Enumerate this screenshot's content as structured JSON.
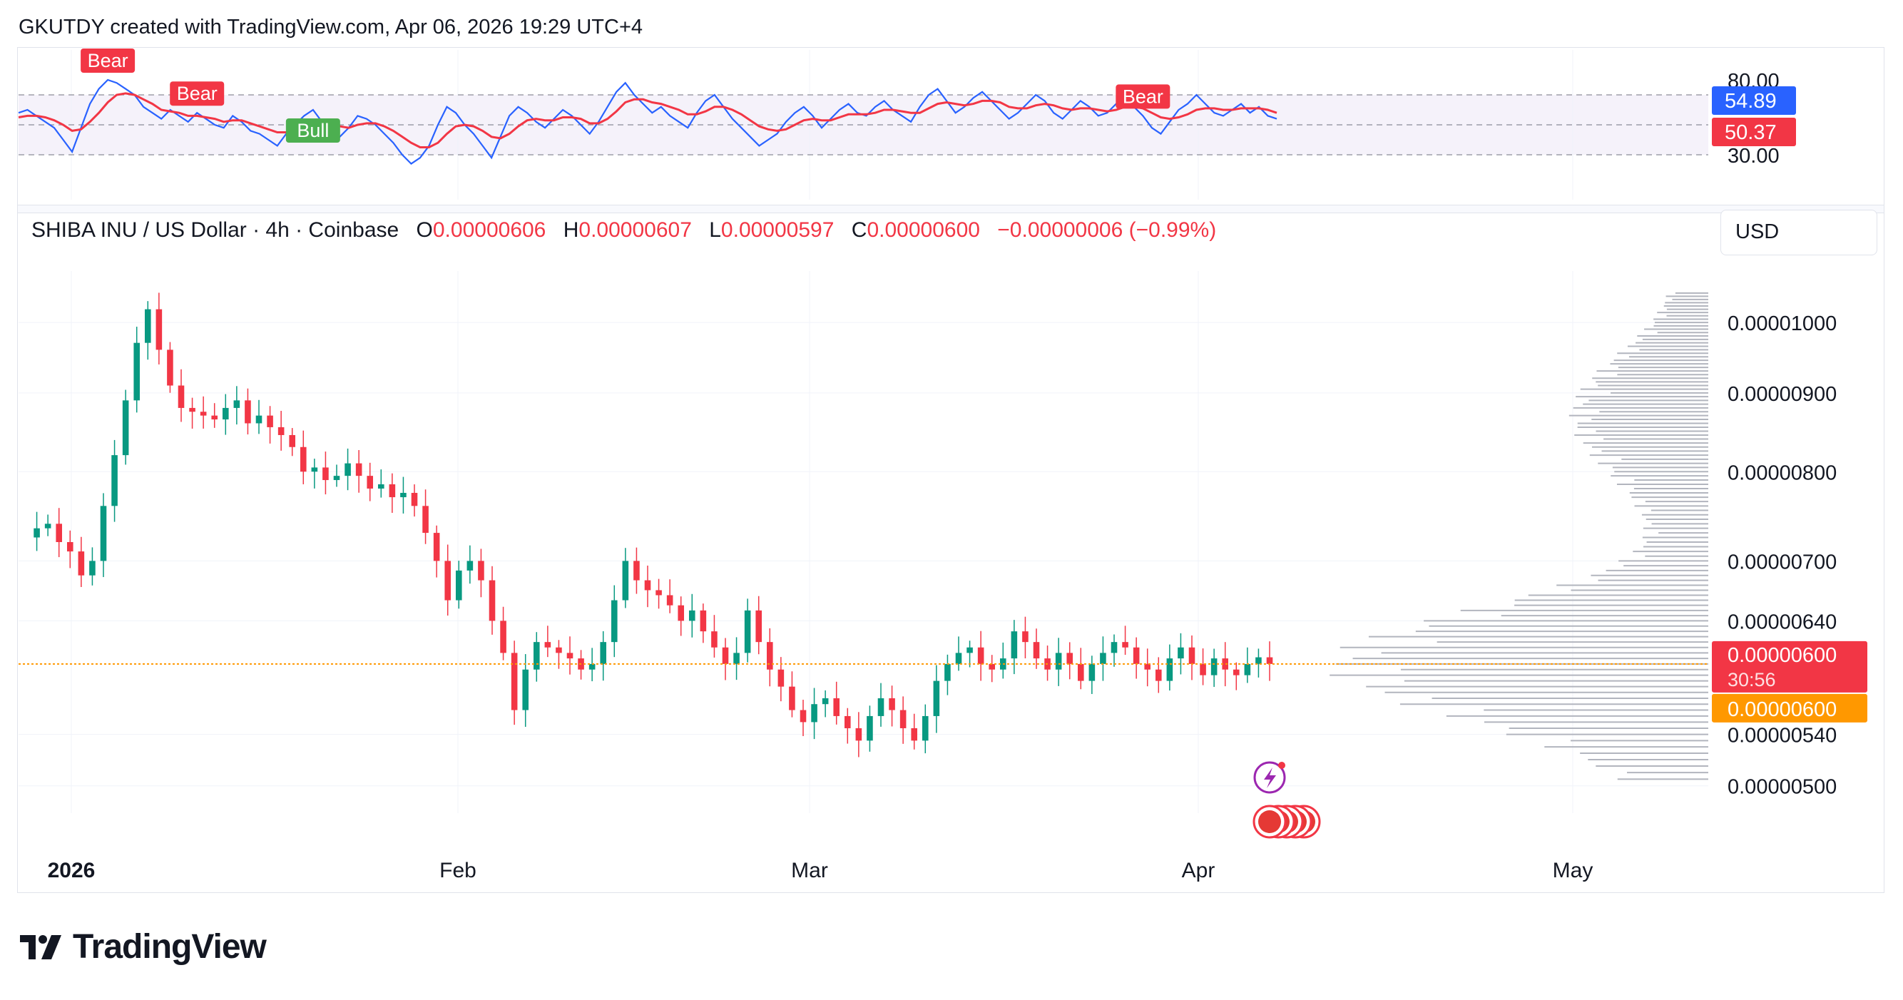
{
  "header": {
    "text": "GKUTDY created with TradingView.com, Apr 06, 2026 19:29 UTC+4"
  },
  "legend": {
    "symbol": "SHIBA INU / US Dollar · 4h · Coinbase",
    "o_label": "O",
    "o_value": "0.00000606",
    "h_label": "H",
    "h_value": "0.00000607",
    "l_label": "L",
    "l_value": "0.00000597",
    "c_label": "C",
    "c_value": "0.00000600",
    "change": "−0.00000006 (−0.99%)"
  },
  "currency": "USD",
  "footer": {
    "brand": "TradingView"
  },
  "colors": {
    "up": "#089981",
    "down": "#f23645",
    "rsi": "#2962ff",
    "rsi_ma": "#f23645",
    "price_line": "#ff9800",
    "volume_profile": "#b2b5be",
    "band": "#7e57c2"
  },
  "chart_data": [
    {
      "type": "line",
      "title": "RSI",
      "y_ticks": [
        "80.00",
        "30.00"
      ],
      "ylim": [
        0,
        100
      ],
      "bands": [
        30,
        70
      ],
      "series": [
        {
          "name": "",
          "current_label": "54.89",
          "values": [
            58,
            60,
            56,
            52,
            48,
            40,
            32,
            48,
            64,
            74,
            80,
            78,
            74,
            70,
            62,
            58,
            54,
            60,
            56,
            52,
            58,
            54,
            50,
            48,
            56,
            52,
            46,
            44,
            40,
            36,
            44,
            50,
            56,
            60,
            52,
            46,
            42,
            48,
            56,
            54,
            50,
            44,
            38,
            30,
            24,
            28,
            36,
            50,
            62,
            58,
            50,
            44,
            36,
            28,
            42,
            56,
            62,
            58,
            52,
            48,
            54,
            60,
            56,
            50,
            44,
            52,
            62,
            72,
            78,
            70,
            64,
            58,
            62,
            56,
            52,
            48,
            58,
            66,
            70,
            62,
            54,
            48,
            42,
            36,
            40,
            44,
            52,
            58,
            62,
            56,
            48,
            54,
            60,
            64,
            58,
            56,
            62,
            66,
            60,
            56,
            52,
            62,
            70,
            74,
            66,
            58,
            62,
            68,
            72,
            66,
            60,
            54,
            58,
            64,
            70,
            66,
            58,
            54,
            60,
            66,
            62,
            56,
            58,
            64,
            70,
            62,
            56,
            48,
            44,
            52,
            60,
            64,
            70,
            64,
            58,
            56,
            60,
            64,
            58,
            62,
            56,
            54
          ]
        },
        {
          "name": "",
          "current_label": "50.37",
          "values": [
            55,
            56,
            56,
            55,
            53,
            50,
            46,
            47,
            52,
            58,
            65,
            70,
            71,
            70,
            67,
            64,
            60,
            59,
            58,
            56,
            56,
            55,
            54,
            52,
            53,
            53,
            51,
            49,
            47,
            45,
            45,
            46,
            49,
            52,
            52,
            51,
            49,
            48,
            50,
            51,
            51,
            49,
            46,
            42,
            38,
            35,
            35,
            38,
            44,
            49,
            50,
            49,
            46,
            42,
            41,
            44,
            49,
            53,
            54,
            53,
            53,
            55,
            55,
            54,
            51,
            51,
            54,
            59,
            65,
            67,
            67,
            65,
            64,
            62,
            60,
            57,
            57,
            59,
            62,
            62,
            60,
            57,
            53,
            49,
            47,
            46,
            47,
            50,
            53,
            54,
            53,
            53,
            55,
            57,
            57,
            57,
            58,
            60,
            60,
            59,
            58,
            58,
            61,
            64,
            65,
            64,
            63,
            64,
            66,
            66,
            65,
            62,
            61,
            61,
            63,
            64,
            63,
            61,
            60,
            61,
            61,
            60,
            59,
            60,
            62,
            62,
            61,
            58,
            55,
            54,
            55,
            57,
            60,
            61,
            61,
            60,
            60,
            61,
            61,
            61,
            60,
            58
          ]
        }
      ],
      "markers": [
        {
          "text": "Bear",
          "color": "#f23645",
          "index": 10
        },
        {
          "text": "Bear",
          "color": "#f23645",
          "index": 20
        },
        {
          "text": "Bull",
          "color": "#4caf50",
          "index": 33
        },
        {
          "text": "Bear",
          "color": "#f23645",
          "index": 126
        }
      ]
    },
    {
      "type": "line",
      "title": "SHIBA INU / US Dollar · 4h · Coinbase",
      "ylim": [
        4.8e-06,
        1.08e-05
      ],
      "y_scale": "log",
      "y_ticks": [
        "0.00001000",
        "0.00000900",
        "0.00000800",
        "0.00000700",
        "0.00000640",
        "0.00000540",
        "0.00000500"
      ],
      "x_ticks": [
        "2026",
        "Feb",
        "Mar",
        "Apr",
        "May"
      ],
      "last_price_label": "0.00000600",
      "countdown": "30:56",
      "reference_label": "0.00000600",
      "series": [
        {
          "name": "",
          "values": [
            7.25,
            7.35,
            7.4,
            7.2,
            7.1,
            6.85,
            7.0,
            7.6,
            8.2,
            8.9,
            9.7,
            10.2,
            9.6,
            9.1,
            8.8,
            8.75,
            8.7,
            8.65,
            8.8,
            8.9,
            8.6,
            8.7,
            8.55,
            8.45,
            8.3,
            8.0,
            8.05,
            7.9,
            7.95,
            8.1,
            7.95,
            7.8,
            7.85,
            7.7,
            7.75,
            7.6,
            7.3,
            7.0,
            6.6,
            6.9,
            7.0,
            6.8,
            6.4,
            6.1,
            5.6,
            5.95,
            6.2,
            6.15,
            6.1,
            6.05,
            5.95,
            6.0,
            6.2,
            6.6,
            7.0,
            6.8,
            6.7,
            6.65,
            6.55,
            6.4,
            6.5,
            6.3,
            6.15,
            6.0,
            6.1,
            6.5,
            6.2,
            5.95,
            5.8,
            5.6,
            5.5,
            5.65,
            5.7,
            5.55,
            5.45,
            5.35,
            5.55,
            5.7,
            5.6,
            5.45,
            5.35,
            5.55,
            5.85,
            6.0,
            6.1,
            6.15,
            6.0,
            5.95,
            6.05,
            6.3,
            6.2,
            6.05,
            5.95,
            6.1,
            6.0,
            5.85,
            6.0,
            6.1,
            6.2,
            6.15,
            6.0,
            5.95,
            5.85,
            6.05,
            6.15,
            6.0,
            5.9,
            6.05,
            5.95,
            5.9,
            6.0,
            6.06,
            6.0
          ]
        }
      ]
    }
  ]
}
